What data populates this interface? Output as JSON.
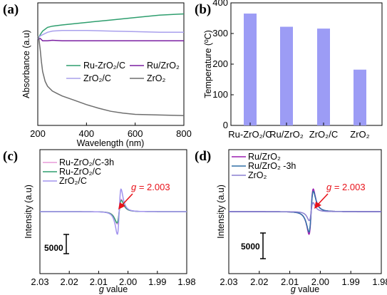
{
  "chart_data": [
    {
      "panel": "(a)",
      "type": "line",
      "xlabel": "Wavelength (nm)",
      "ylabel": "Absorbance (a.u)",
      "xlim": [
        200,
        800
      ],
      "xticks": [
        "200",
        "400",
        "600",
        "800"
      ],
      "ylim": [
        0,
        1
      ],
      "grid": false,
      "legend": "center, two columns",
      "series": [
        {
          "name": "Ru-ZrO₂/C",
          "color": "#2e9e6e",
          "x": [
            200,
            210,
            220,
            240,
            260,
            300,
            350,
            400,
            500,
            600,
            700,
            800
          ],
          "y": [
            0.7,
            0.74,
            0.77,
            0.8,
            0.81,
            0.82,
            0.83,
            0.84,
            0.86,
            0.88,
            0.9,
            0.91
          ]
        },
        {
          "name": "Ru/ZrO₂",
          "color": "#7b1fa2",
          "x": [
            200,
            210,
            220,
            240,
            260,
            300,
            400,
            500,
            600,
            700,
            800
          ],
          "y": [
            0.7,
            0.71,
            0.69,
            0.69,
            0.695,
            0.69,
            0.69,
            0.69,
            0.69,
            0.69,
            0.69
          ]
        },
        {
          "name": "ZrO₂/C",
          "color": "#a9a0ec",
          "x": [
            200,
            210,
            220,
            240,
            260,
            300,
            350,
            400,
            500,
            600,
            700,
            800
          ],
          "y": [
            0.71,
            0.73,
            0.74,
            0.76,
            0.77,
            0.775,
            0.775,
            0.775,
            0.77,
            0.765,
            0.76,
            0.76
          ]
        },
        {
          "name": "ZrO₂",
          "color": "#6e6e6e",
          "x": [
            200,
            205,
            210,
            215,
            220,
            230,
            240,
            260,
            280,
            300,
            350,
            400,
            450,
            500,
            550,
            600,
            700,
            800
          ],
          "y": [
            0.73,
            0.7,
            0.62,
            0.52,
            0.44,
            0.36,
            0.32,
            0.28,
            0.26,
            0.24,
            0.205,
            0.17,
            0.14,
            0.115,
            0.1,
            0.09,
            0.085,
            0.08
          ]
        }
      ]
    },
    {
      "panel": "(b)",
      "type": "bar",
      "ylabel": "Temperature (ºC)",
      "ylim": [
        0,
        400
      ],
      "yticks": [
        "0",
        "100",
        "200",
        "300",
        "400"
      ],
      "categories": [
        "Ru-ZrO₂/C",
        "Ru/ZrO₂",
        "ZrO₂/C",
        "ZrO₂"
      ],
      "values": [
        365,
        322,
        316,
        182
      ],
      "colors": [
        "#9c9cf5"
      ]
    },
    {
      "panel": "(c)",
      "type": "line",
      "xlabel": "g value",
      "xlabel_italic": "g",
      "xlabel_rest": " value",
      "ylabel": "Intensity (a.u)",
      "xlim": [
        2.03,
        1.98
      ],
      "xticks": [
        "2.03",
        "2.02",
        "2.01",
        "2.00",
        "1.99",
        "1.98"
      ],
      "annotation": {
        "g_label": "g",
        "value_label": " = 2.003",
        "g": 2.003
      },
      "scale_bar_label": "5000",
      "legend": "top-left",
      "series": [
        {
          "name": "Ru-ZrO₂/C-3h",
          "color": "#e79ad8",
          "amplitude": 0.55,
          "width": 0.0012
        },
        {
          "name": "Ru-ZrO₂/C",
          "color": "#2e9e6e",
          "amplitude": 0.5,
          "width": 0.0013
        },
        {
          "name": "ZrO₂/C",
          "color": "#a293ee",
          "amplitude": 1.0,
          "width": 0.0011
        }
      ]
    },
    {
      "panel": "(d)",
      "type": "line",
      "xlabel": "g value",
      "xlabel_italic": "g",
      "xlabel_rest": " value",
      "ylabel": "Intensity (a.u)",
      "xlim": [
        2.03,
        1.98
      ],
      "xticks": [
        "2.03",
        "2.02",
        "2.01",
        "2.00",
        "1.99",
        "1.98"
      ],
      "annotation": {
        "g_label": "g",
        "value_label": " = 2.003",
        "g": 2.003
      },
      "scale_bar_label": "5000",
      "legend": "top-left",
      "series": [
        {
          "name": "Ru/ZrO₂",
          "color": "#9b1fb0",
          "amplitude": 1.0,
          "width": 0.0012
        },
        {
          "name": "Ru/ZrO₂ -3h",
          "color": "#2f6fa6",
          "amplitude": 0.9,
          "width": 0.00125
        },
        {
          "name": "ZrO₂",
          "color": "#8a7fd0",
          "amplitude": 0.4,
          "width": 0.0011
        }
      ]
    }
  ]
}
